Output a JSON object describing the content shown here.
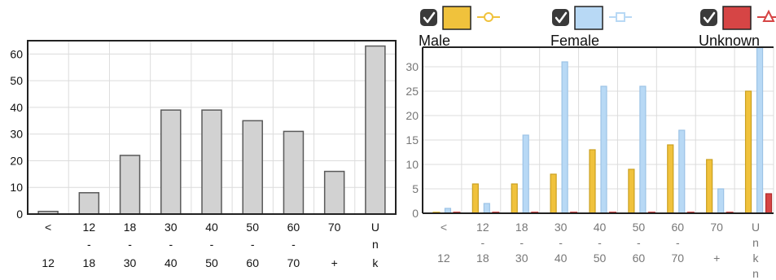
{
  "colors": {
    "gray_bar": "#d2d2d2",
    "gray_stroke": "#5a5a5a",
    "male": "#f0c23c",
    "male_stroke": "#caa020",
    "female": "#b8d9f5",
    "female_stroke": "#9cc3e6",
    "unknown": "#d64545",
    "unknown_stroke": "#b02c2c",
    "grid": "#dcdcdc",
    "axis": "#222222",
    "checkbox": "#3a3a3a"
  },
  "legend": [
    {
      "name": "Male",
      "checked": true,
      "color": "#f0c23c",
      "marker": "circle-icon"
    },
    {
      "name": "Female",
      "checked": true,
      "color": "#b8d9f5",
      "marker": "square-icon"
    },
    {
      "name": "Unknown",
      "checked": true,
      "color": "#d64545",
      "marker": "triangle-icon"
    }
  ],
  "chart_data": [
    {
      "type": "bar",
      "categories": [
        [
          "<",
          "12"
        ],
        [
          "12",
          "-",
          "18"
        ],
        [
          "18",
          "-",
          "30"
        ],
        [
          "30",
          "-",
          "40"
        ],
        [
          "40",
          "-",
          "50"
        ],
        [
          "50",
          "-",
          "60"
        ],
        [
          "60",
          "-",
          "70"
        ],
        [
          "70",
          "+"
        ],
        [
          "U",
          "n",
          "k"
        ]
      ],
      "values": [
        1,
        8,
        22,
        39,
        39,
        35,
        31,
        16,
        63
      ],
      "ylim": [
        0,
        65
      ],
      "yticks": [
        0,
        10,
        20,
        30,
        40,
        50,
        60
      ],
      "grid": true
    },
    {
      "type": "bar",
      "categories": [
        [
          "<",
          "12"
        ],
        [
          "12",
          "-",
          "18"
        ],
        [
          "18",
          "-",
          "30"
        ],
        [
          "30",
          "-",
          "40"
        ],
        [
          "40",
          "-",
          "50"
        ],
        [
          "50",
          "-",
          "60"
        ],
        [
          "60",
          "-",
          "70"
        ],
        [
          "70",
          "+"
        ],
        [
          "U",
          "n",
          "k",
          "n"
        ]
      ],
      "series": [
        {
          "name": "Male",
          "values": [
            0,
            6,
            6,
            8,
            13,
            9,
            14,
            11,
            25
          ]
        },
        {
          "name": "Female",
          "values": [
            1,
            2,
            16,
            31,
            26,
            26,
            17,
            5,
            34
          ]
        },
        {
          "name": "Unknown",
          "values": [
            0,
            0,
            0,
            0,
            0,
            0,
            0,
            0,
            4
          ]
        }
      ],
      "ylim": [
        0,
        34
      ],
      "yticks": [
        0,
        5,
        10,
        15,
        20,
        25,
        30
      ],
      "grid": true,
      "legend_position": "top"
    }
  ]
}
